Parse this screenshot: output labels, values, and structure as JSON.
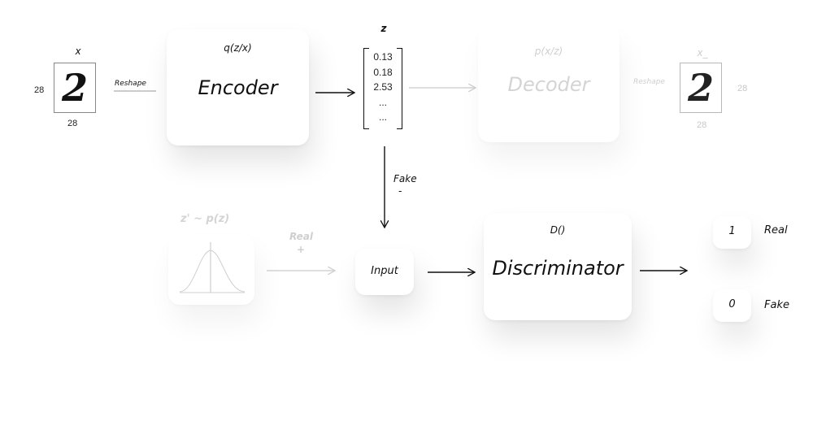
{
  "input": {
    "label": "x",
    "dim_left": "28",
    "dim_bottom": "28",
    "digit": "2",
    "reshape": "Reshape"
  },
  "encoder": {
    "formula": "q(z/x)",
    "title": "Encoder"
  },
  "latent": {
    "label": "z",
    "values": [
      "0.13",
      "0.18",
      "2.53",
      "...",
      "..."
    ]
  },
  "decoder": {
    "formula": "p(x/z)",
    "title": "Decoder",
    "reshape": "Reshape"
  },
  "output": {
    "label": "x_",
    "dim_right": "28",
    "dim_bottom": "28",
    "digit": "2"
  },
  "fake_path": {
    "label": "Fake",
    "sign": "-"
  },
  "prior": {
    "label": "z' ~ p(z)"
  },
  "real_path": {
    "label": "Real",
    "sign": "+"
  },
  "input_node": {
    "label": "Input"
  },
  "discriminator": {
    "formula": "D()",
    "title": "Discriminator"
  },
  "outputs": [
    {
      "value": "1",
      "label": "Real"
    },
    {
      "value": "0",
      "label": "Fake"
    }
  ]
}
